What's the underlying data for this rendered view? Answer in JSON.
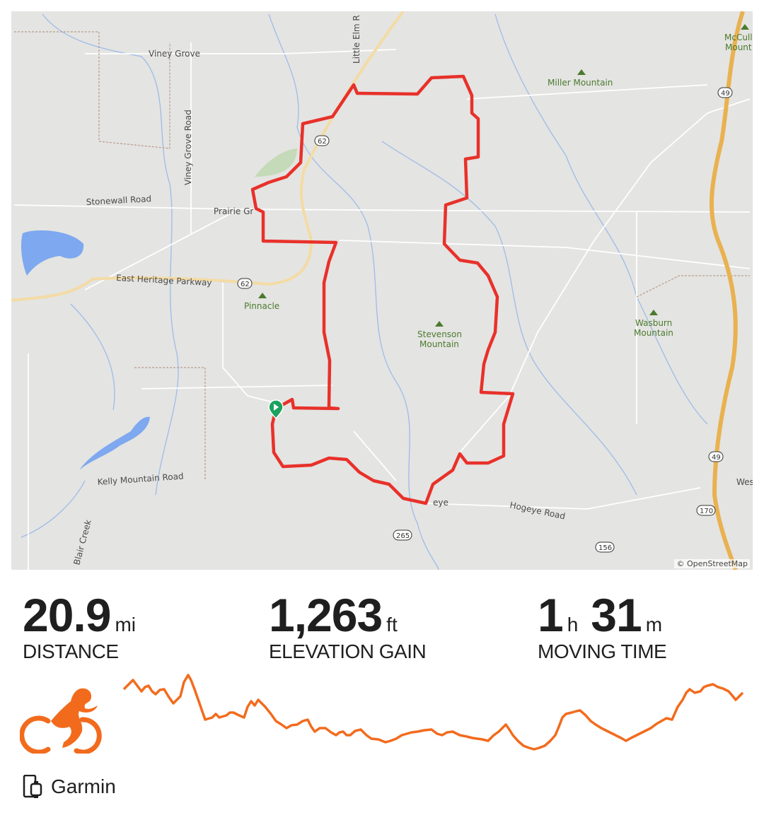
{
  "map": {
    "attribution": "© OpenStreetMap",
    "labels": {
      "viney_grove": "Viney Grove",
      "viney_grove_road": "Viney Grove Road",
      "little_elm": "Little Elm R",
      "stonewall_road": "Stonewall Road",
      "prairie_grove": "Prairie Gr",
      "east_heritage": "East Heritage Parkway",
      "pinnacle": "Pinnacle",
      "miller_mountain": "Miller Mountain",
      "stevenson_1": "Stevenson",
      "stevenson_2": "Mountain",
      "wasburn_1": "Wasburn",
      "wasburn_2": "Mountain",
      "mccull_1": "McCull",
      "mccull_2": "Mount",
      "kelly_mountain": "Kelly Mountain Road",
      "hogeye_road": "Hogeye Road",
      "hogeye_short": "eye",
      "blair_creek": "Blair Creek",
      "wes": "Wes"
    },
    "shields": [
      "62",
      "62",
      "49",
      "49",
      "170",
      "265",
      "156"
    ],
    "route_color": "#e8312a",
    "start_marker_color": "#1aa260"
  },
  "stats": [
    {
      "value": "20.9",
      "unit": "mi",
      "label": "DISTANCE"
    },
    {
      "value": "1,263",
      "unit": "ft",
      "label": "ELEVATION GAIN"
    },
    {
      "value1": "1",
      "unit1": "h",
      "value2": "31",
      "unit2": "m",
      "label": "MOVING TIME"
    }
  ],
  "activity": {
    "type_icon": "cycling-icon",
    "accent": "#f26b1d"
  },
  "device": {
    "icon": "device-icon",
    "name": "Garmin"
  }
}
